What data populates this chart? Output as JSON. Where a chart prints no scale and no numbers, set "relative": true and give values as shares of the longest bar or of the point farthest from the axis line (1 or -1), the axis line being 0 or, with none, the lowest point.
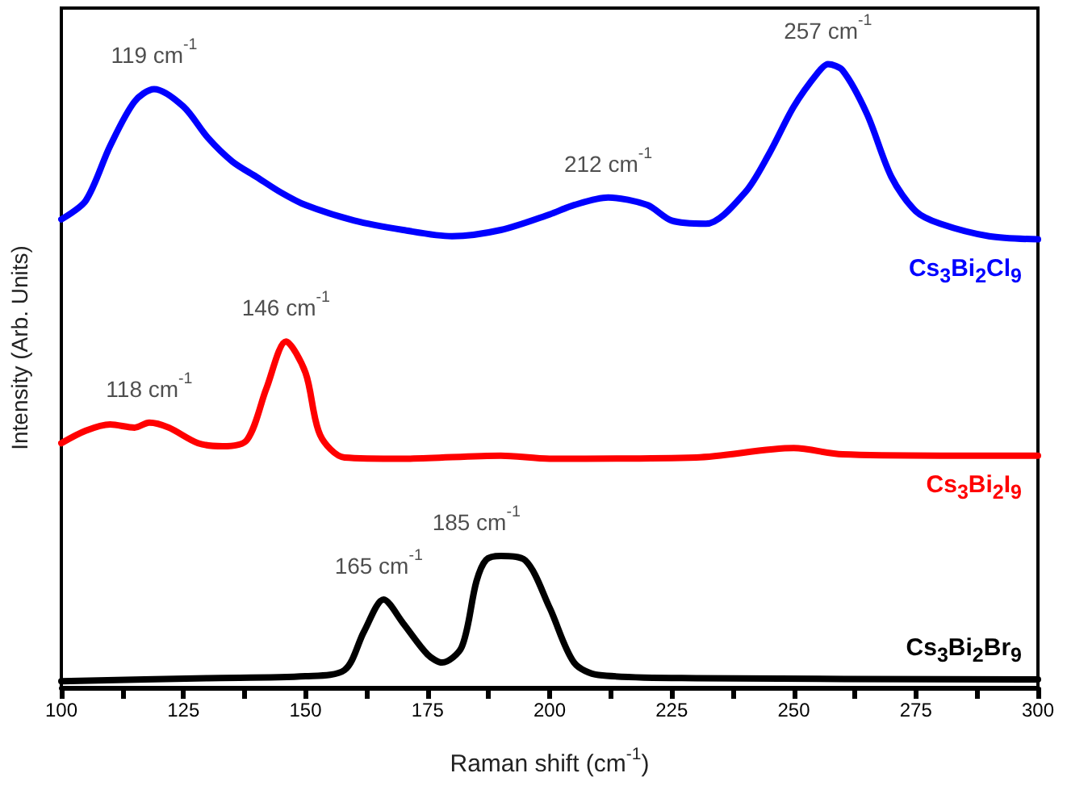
{
  "chart_data": {
    "type": "line",
    "xlabel": "Raman shift (cm$^{-1}$)",
    "ylabel": "Intensity (Arb. Units)",
    "relative": true,
    "xlim": [
      100,
      300
    ],
    "xticks": [
      100,
      {
        "value": 112.5,
        "label": null
      },
      125,
      {
        "value": 137.5,
        "label": null
      },
      150,
      {
        "value": 162.5,
        "label": null
      },
      175,
      {
        "value": 187.5,
        "label": null
      },
      200,
      {
        "value": 212.5,
        "label": null
      },
      225,
      {
        "value": 237.5,
        "label": null
      },
      250,
      {
        "value": 262.5,
        "label": null
      },
      275,
      {
        "value": 287.5,
        "label": null
      },
      300
    ],
    "grid": false,
    "legend": false,
    "marker": "none",
    "line_style": "solid",
    "series": [
      {
        "name": "Cs$_{3}$Bi$_{2}$Cl$_{9}$",
        "color": "#0000ff",
        "x": [
          100,
          105,
          110,
          115,
          119,
          125,
          130,
          135,
          140,
          145,
          150,
          160,
          170,
          180,
          190,
          200,
          205,
          212,
          220,
          225,
          232,
          240,
          245,
          250,
          255,
          257,
          260,
          265,
          270,
          275,
          280,
          290,
          300
        ],
        "values": [
          0.751,
          0.781,
          0.869,
          0.94,
          0.96,
          0.932,
          0.882,
          0.844,
          0.819,
          0.794,
          0.774,
          0.749,
          0.734,
          0.724,
          0.734,
          0.759,
          0.774,
          0.786,
          0.774,
          0.749,
          0.744,
          0.794,
          0.857,
          0.932,
          0.987,
          1,
          0.99,
          0.92,
          0.819,
          0.764,
          0.744,
          0.724,
          0.719
        ]
      },
      {
        "name": "Cs$_{3}$Bi$_{2}$I$_{9}$",
        "color": "#ff0000",
        "x": [
          100,
          105,
          110,
          115,
          118,
          122,
          128,
          133,
          138,
          142,
          146,
          150,
          153,
          158,
          170,
          190,
          200,
          230,
          250,
          260,
          280,
          300
        ],
        "values": [
          0.392,
          0.412,
          0.422,
          0.417,
          0.425,
          0.417,
          0.392,
          0.387,
          0.397,
          0.48,
          0.555,
          0.505,
          0.405,
          0.369,
          0.367,
          0.372,
          0.367,
          0.369,
          0.384,
          0.374,
          0.372,
          0.372
        ]
      },
      {
        "name": "Cs$_{3}$Bi$_{2}$Br$_{9}$",
        "color": "#000000",
        "x": [
          100,
          130,
          150,
          158,
          162,
          166,
          170,
          175,
          178,
          182,
          185,
          187,
          190,
          195,
          200,
          205,
          210,
          230,
          300
        ],
        "values": [
          0.01,
          0.015,
          0.018,
          0.028,
          0.09,
          0.141,
          0.103,
          0.053,
          0.04,
          0.065,
          0.17,
          0.205,
          0.211,
          0.204,
          0.128,
          0.04,
          0.02,
          0.015,
          0.013
        ]
      }
    ],
    "annotations": [
      {
        "text": "119 cm$^{-1}$",
        "x": 119,
        "y": 0.96
      },
      {
        "text": "212 cm$^{-1}$",
        "x": 212,
        "y": 0.786
      },
      {
        "text": "257 cm$^{-1}$",
        "x": 257,
        "y": 1
      },
      {
        "text": "118 cm$^{-1}$",
        "x": 118,
        "y": 0.425
      },
      {
        "text": "146 cm$^{-1}$",
        "x": 146,
        "y": 0.555
      },
      {
        "text": "165 cm$^{-1}$",
        "x": 165,
        "y": 0.141
      },
      {
        "text": "185 cm$^{-1}$",
        "x": 185,
        "y": 0.17
      }
    ]
  }
}
